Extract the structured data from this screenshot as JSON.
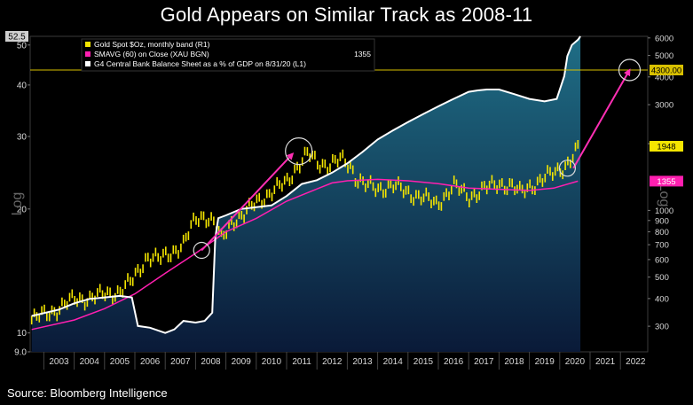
{
  "title": "Gold Appears on Similar Track as 2008-11",
  "source": "Source: Bloomberg Intelligence",
  "colors": {
    "background": "#000000",
    "gold": "#f5e600",
    "sma": "#ff1fb0",
    "balance_line": "#ffffff",
    "area_top": "#1f6e86",
    "area_bottom": "#0a1a38",
    "reference_line": "#d8c000",
    "arrow": "#ff2fb4"
  },
  "chart_data": {
    "type": "line",
    "title": "Gold Appears on Similar Track as 2008-11",
    "x_ticks": [
      "2003",
      "2004",
      "2005",
      "2006",
      "2007",
      "2008",
      "2009",
      "2010",
      "2011",
      "2012",
      "2013",
      "2014",
      "2015",
      "2016",
      "2017",
      "2018",
      "2019",
      "2020",
      "2021",
      "2022"
    ],
    "x_range": [
      2002.55,
      2022.9
    ],
    "left_axis": {
      "label": "Log",
      "scale": "log",
      "range": [
        9.0,
        52.5
      ],
      "ticks": [
        "9.0",
        "10",
        "20",
        "30",
        "40",
        "50"
      ],
      "top_marker": "52.5"
    },
    "right_axis": {
      "label": "Log",
      "scale": "log",
      "range": [
        230,
        6100
      ],
      "ticks": [
        "300",
        "400",
        "500",
        "600",
        "700",
        "800",
        "900",
        "1000",
        "2000",
        "3000",
        "4000",
        "5000",
        "6000"
      ]
    },
    "reference_line": {
      "value": 4300,
      "label": "4300.00",
      "axis": "right"
    },
    "end_labels": [
      {
        "value": 1948,
        "label": "1948",
        "axis": "right"
      },
      {
        "value": 1355,
        "label": "1355",
        "axis": "right"
      }
    ],
    "legend": {
      "placement": "top-left",
      "entries": [
        {
          "label": "Gold Spot $Oz, monthly band (R1)",
          "value": ""
        },
        {
          "label": "SMAVG (60)  on Close (XAU BGN)",
          "value": "1355"
        },
        {
          "label": "G4 Central Bank Balance Sheet as a % of GDP on 8/31/20 (L1)",
          "value": ""
        }
      ]
    },
    "series": [
      {
        "name": "Gold Spot $Oz, monthly band (R1)",
        "axis": "right",
        "x": [
          2002.6,
          2003.0,
          2003.5,
          2004.0,
          2004.5,
          2005.0,
          2005.5,
          2005.9,
          2006.4,
          2006.8,
          2007.2,
          2007.6,
          2008.0,
          2008.3,
          2008.6,
          2008.85,
          2009.2,
          2009.6,
          2010.0,
          2010.5,
          2011.0,
          2011.3,
          2011.7,
          2012.0,
          2012.4,
          2012.8,
          2013.1,
          2013.3,
          2013.6,
          2014.0,
          2014.5,
          2015.0,
          2015.5,
          2015.95,
          2016.5,
          2017.0,
          2017.5,
          2018.0,
          2018.4,
          2018.7,
          2019.0,
          2019.5,
          2019.9,
          2020.2,
          2020.5,
          2020.65
        ],
        "values": [
          320,
          340,
          360,
          400,
          400,
          420,
          430,
          480,
          620,
          600,
          650,
          700,
          920,
          950,
          880,
          740,
          900,
          950,
          1100,
          1200,
          1350,
          1550,
          1800,
          1650,
          1600,
          1700,
          1600,
          1400,
          1300,
          1250,
          1300,
          1200,
          1150,
          1060,
          1300,
          1150,
          1250,
          1320,
          1300,
          1200,
          1280,
          1400,
          1500,
          1600,
          1800,
          1948
        ]
      },
      {
        "name": "SMAVG (60)  on Close (XAU BGN)",
        "axis": "right",
        "x": [
          2002.6,
          2004.0,
          2005.0,
          2006.0,
          2007.0,
          2008.0,
          2009.0,
          2010.0,
          2011.0,
          2012.0,
          2012.5,
          2013.0,
          2014.0,
          2015.0,
          2016.0,
          2017.0,
          2018.0,
          2019.0,
          2019.8,
          2020.6
        ],
        "values": [
          290,
          320,
          360,
          420,
          520,
          640,
          800,
          920,
          1100,
          1250,
          1330,
          1360,
          1380,
          1360,
          1320,
          1260,
          1245,
          1230,
          1260,
          1355
        ]
      },
      {
        "name": "G4 Central Bank Balance Sheet as a % of GDP on 8/31/20 (L1)",
        "axis": "left",
        "x": [
          2002.6,
          2003.5,
          2004.0,
          2004.5,
          2005.0,
          2005.5,
          2005.9,
          2006.1,
          2006.5,
          2007.0,
          2007.3,
          2007.6,
          2008.0,
          2008.3,
          2008.55,
          2008.65,
          2008.75,
          2009.0,
          2009.5,
          2010.0,
          2010.5,
          2011.0,
          2011.5,
          2012.0,
          2012.5,
          2013.0,
          2013.5,
          2014.0,
          2014.5,
          2015.0,
          2015.5,
          2016.0,
          2016.5,
          2017.0,
          2017.3,
          2017.6,
          2018.0,
          2018.5,
          2019.0,
          2019.5,
          2019.9,
          2020.15,
          2020.25,
          2020.4,
          2020.6,
          2020.68
        ],
        "values": [
          11.0,
          11.4,
          11.8,
          12.1,
          12.2,
          12.3,
          12.2,
          10.4,
          10.3,
          10.0,
          10.2,
          10.7,
          10.6,
          10.7,
          11.2,
          17.0,
          19.0,
          19.3,
          20.0,
          20.2,
          20.4,
          21.5,
          23.0,
          23.5,
          24.5,
          25.8,
          27.5,
          29.5,
          31.0,
          32.5,
          34.0,
          35.5,
          37.0,
          38.5,
          38.8,
          39.0,
          39.0,
          38.0,
          37.0,
          36.5,
          37.0,
          42.0,
          47.0,
          50.0,
          51.5,
          52.5
        ]
      }
    ],
    "annotations": [
      {
        "type": "arrow",
        "from": [
          2008.2,
          660
        ],
        "to": [
          2011.2,
          1800
        ]
      },
      {
        "type": "arrow",
        "from": [
          2020.45,
          1550
        ],
        "to": [
          2022.3,
          4300
        ]
      },
      {
        "type": "circle",
        "at": [
          2011.4,
          1850
        ]
      },
      {
        "type": "circle",
        "at": [
          2008.2,
          660
        ]
      },
      {
        "type": "circle",
        "at": [
          2020.25,
          1550
        ]
      },
      {
        "type": "circle",
        "at": [
          2022.3,
          4300
        ]
      }
    ],
    "grid": false
  }
}
